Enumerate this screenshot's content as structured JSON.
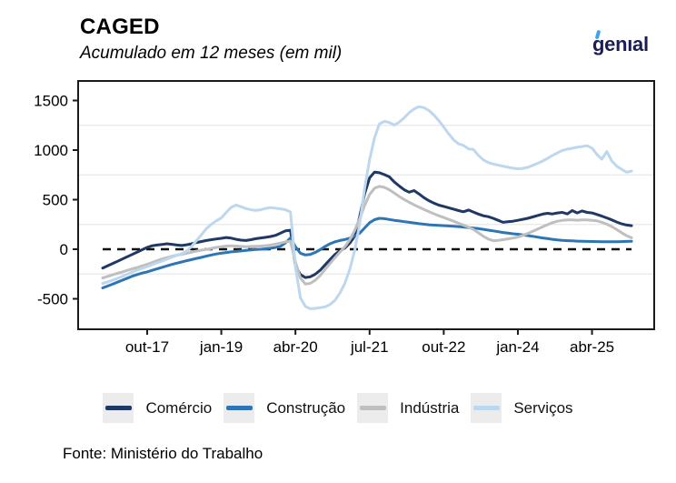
{
  "header": {
    "title": "CAGED",
    "subtitle": "Acumulado em 12 meses (em mil)"
  },
  "logo": {
    "text": "genıal",
    "text_color": "#1B1E55",
    "accent_color": "#3FA3EB"
  },
  "footer": {
    "source": "Fonte: Ministério do Trabalho"
  },
  "chart_data": {
    "type": "line",
    "title": "CAGED",
    "subtitle": "Acumulado em 12 meses (em mil)",
    "unit": "mil (thousands), saldo acumulado em 12 meses",
    "x_tick_labels": [
      "out-17",
      "jan-19",
      "abr-20",
      "jul-21",
      "out-22",
      "jan-24",
      "abr-25"
    ],
    "x_tick_indices": [
      9,
      24,
      39,
      54,
      69,
      84,
      99
    ],
    "x_period": "monthly points from jan-17 (index 0), ticks every 15 months",
    "y_ticks": [
      -500,
      0,
      500,
      1000,
      1500
    ],
    "y_minor_gridlines": [
      -250,
      250,
      750,
      1250
    ],
    "ylim": [
      -807,
      1697
    ],
    "zero_line_dashed": true,
    "grid": "minor-horizontal-only",
    "legend_position": "bottom",
    "frame_color": "#1a1a1a",
    "gridline_color": "#E8E8E8",
    "series": [
      {
        "name": "Comércio",
        "color": "#1F3864",
        "values": [
          -190,
          -168,
          -145,
          -122,
          -98,
          -75,
          -52,
          -28,
          -5,
          18,
          35,
          42,
          48,
          55,
          50,
          42,
          38,
          45,
          55,
          68,
          78,
          88,
          96,
          104,
          110,
          118,
          112,
          100,
          92,
          88,
          96,
          106,
          114,
          120,
          128,
          140,
          162,
          185,
          192,
          -170,
          -255,
          -285,
          -278,
          -252,
          -212,
          -158,
          -105,
          -52,
          -15,
          12,
          62,
          132,
          330,
          560,
          720,
          778,
          772,
          752,
          730,
          678,
          638,
          600,
          575,
          592,
          558,
          520,
          490,
          465,
          445,
          432,
          418,
          405,
          390,
          378,
          395,
          375,
          355,
          338,
          328,
          312,
          292,
          272,
          277,
          283,
          292,
          302,
          312,
          326,
          340,
          354,
          362,
          356,
          366,
          372,
          356,
          390,
          366,
          386,
          372,
          366,
          350,
          334,
          316,
          296,
          274,
          256,
          244,
          238
        ]
      },
      {
        "name": "Construção",
        "color": "#2E75B6",
        "values": [
          -390,
          -372,
          -352,
          -332,
          -312,
          -292,
          -272,
          -255,
          -240,
          -228,
          -213,
          -198,
          -183,
          -168,
          -153,
          -140,
          -128,
          -116,
          -105,
          -93,
          -82,
          -70,
          -58,
          -48,
          -40,
          -33,
          -27,
          -22,
          -17,
          -12,
          -7,
          -3,
          0,
          5,
          10,
          18,
          30,
          65,
          115,
          25,
          -40,
          -58,
          -52,
          -32,
          -5,
          28,
          55,
          75,
          88,
          98,
          112,
          132,
          162,
          215,
          268,
          298,
          312,
          308,
          300,
          292,
          285,
          278,
          272,
          265,
          258,
          252,
          247,
          243,
          240,
          238,
          235,
          232,
          228,
          224,
          219,
          214,
          208,
          201,
          193,
          185,
          177,
          169,
          162,
          156,
          151,
          145,
          138,
          130,
          122,
          114,
          107,
          100,
          94,
          89,
          86,
          84,
          82,
          80,
          79,
          78,
          77,
          76,
          76,
          75,
          76,
          77,
          79,
          81
        ]
      },
      {
        "name": "Indústria",
        "color": "#BFBFBF",
        "values": [
          -290,
          -274,
          -258,
          -243,
          -228,
          -213,
          -198,
          -184,
          -168,
          -152,
          -134,
          -116,
          -98,
          -85,
          -72,
          -60,
          -51,
          -40,
          -30,
          -18,
          -9,
          -2,
          8,
          18,
          25,
          32,
          35,
          32,
          28,
          25,
          28,
          30,
          32,
          36,
          42,
          52,
          62,
          74,
          82,
          -130,
          -290,
          -350,
          -344,
          -314,
          -264,
          -204,
          -144,
          -84,
          -28,
          26,
          96,
          190,
          310,
          440,
          552,
          616,
          634,
          624,
          600,
          566,
          532,
          502,
          474,
          448,
          424,
          402,
          380,
          358,
          338,
          320,
          301,
          283,
          262,
          243,
          222,
          200,
          166,
          131,
          103,
          86,
          89,
          96,
          105,
          113,
          123,
          139,
          159,
          181,
          203,
          226,
          248,
          268,
          283,
          291,
          295,
          296,
          293,
          295,
          296,
          292,
          286,
          272,
          252,
          228,
          198,
          166,
          137,
          116
        ]
      },
      {
        "name": "Serviços",
        "color": "#BDD7EE",
        "values": [
          -345,
          -330,
          -312,
          -294,
          -274,
          -252,
          -230,
          -210,
          -192,
          -175,
          -156,
          -138,
          -120,
          -100,
          -80,
          -62,
          -44,
          -18,
          28,
          88,
          148,
          208,
          252,
          286,
          316,
          372,
          422,
          446,
          428,
          410,
          398,
          392,
          398,
          412,
          420,
          414,
          406,
          398,
          376,
          -180,
          -490,
          -576,
          -600,
          -596,
          -590,
          -582,
          -558,
          -516,
          -442,
          -342,
          -202,
          -12,
          258,
          612,
          905,
          1125,
          1264,
          1290,
          1278,
          1252,
          1282,
          1325,
          1376,
          1416,
          1438,
          1428,
          1400,
          1354,
          1297,
          1232,
          1164,
          1104,
          1062,
          1048,
          1012,
          1006,
          948,
          902,
          874,
          860,
          849,
          838,
          827,
          817,
          812,
          816,
          826,
          846,
          866,
          890,
          916,
          946,
          972,
          996,
          1010,
          1018,
          1028,
          1036,
          1044,
          1020,
          955,
          908,
          985,
          890,
          838,
          806,
          776,
          788
        ]
      }
    ]
  }
}
